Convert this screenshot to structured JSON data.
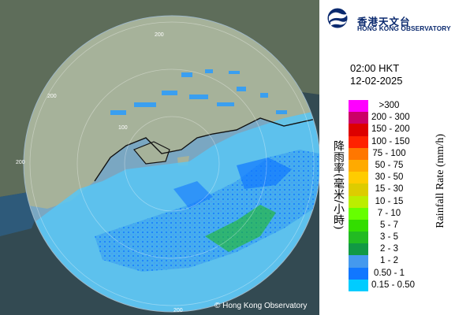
{
  "header": {
    "logo_chinese": "香港天文台",
    "logo_english": "HONG KONG OBSERVATORY"
  },
  "timestamp": {
    "time": "02:00 HKT",
    "date": "12-02-2025"
  },
  "legend": {
    "label_chinese": "降雨率(毫米/小時)",
    "label_english": "Rainfall Rate (mm/h)",
    "items": [
      {
        "label": ">300",
        "color": "#ff00ff"
      },
      {
        "label": "200 - 300",
        "color": "#cc0066"
      },
      {
        "label": "150 - 200",
        "color": "#dd0000"
      },
      {
        "label": "100 - 150",
        "color": "#ff2200"
      },
      {
        "label": "75 - 100",
        "color": "#ff7700"
      },
      {
        "label": "50 - 75",
        "color": "#ffaa00"
      },
      {
        "label": "30 - 50",
        "color": "#ffcc00"
      },
      {
        "label": "15 - 30",
        "color": "#ddcc00"
      },
      {
        "label": "10 - 15",
        "color": "#bbee00"
      },
      {
        "label": "7 - 10",
        "color": "#66ff00"
      },
      {
        "label": "5 - 7",
        "color": "#33dd00"
      },
      {
        "label": "3 - 5",
        "color": "#22bb22"
      },
      {
        "label": "2 - 3",
        "color": "#119944"
      },
      {
        "label": "1 - 2",
        "color": "#4499ee"
      },
      {
        "label": "0.50 - 1",
        "color": "#1177ff"
      },
      {
        "label": "0.15 - 0.50",
        "color": "#00ccff"
      }
    ]
  },
  "map": {
    "range_rings": [
      "200",
      "200",
      "200",
      "200",
      "100"
    ],
    "land_color": "#7c8a72",
    "sea_color": "#1a5d8e",
    "copyright": "© Hong Kong Observatory"
  }
}
